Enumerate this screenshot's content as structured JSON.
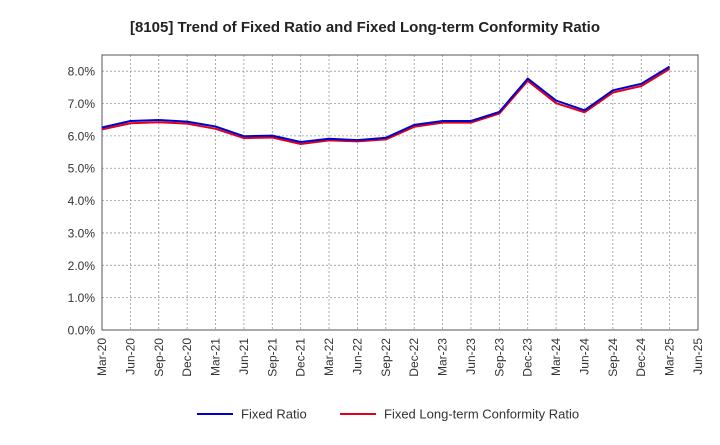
{
  "chart_data": {
    "type": "line",
    "title": "[8105]  Trend of Fixed Ratio and Fixed Long-term Conformity Ratio",
    "xlabel": "",
    "ylabel": "",
    "x": [
      "Mar-20",
      "Jun-20",
      "Sep-20",
      "Dec-20",
      "Mar-21",
      "Jun-21",
      "Sep-21",
      "Dec-21",
      "Mar-22",
      "Jun-22",
      "Sep-22",
      "Dec-22",
      "Mar-23",
      "Jun-23",
      "Sep-23",
      "Dec-23",
      "Mar-24",
      "Jun-24",
      "Sep-24",
      "Dec-24",
      "Mar-25",
      "Jun-25"
    ],
    "ylim": [
      0,
      8.5
    ],
    "yticks": [
      "0.0%",
      "1.0%",
      "2.0%",
      "3.0%",
      "4.0%",
      "5.0%",
      "6.0%",
      "7.0%",
      "8.0%"
    ],
    "grid": true,
    "legend_position": "bottom",
    "series": [
      {
        "name": "Fixed Ratio",
        "color": "#0000cc",
        "values": [
          6.26,
          6.46,
          6.49,
          6.44,
          6.29,
          5.99,
          6.01,
          5.81,
          5.91,
          5.87,
          5.94,
          6.34,
          6.46,
          6.46,
          6.74,
          7.77,
          7.09,
          6.79,
          7.41,
          7.61,
          8.14,
          null
        ]
      },
      {
        "name": "Fixed Long-term Conformity Ratio",
        "color": "#e0001b",
        "values": [
          6.2,
          6.39,
          6.42,
          6.38,
          6.22,
          5.93,
          5.95,
          5.75,
          5.86,
          5.83,
          5.89,
          6.28,
          6.41,
          6.41,
          6.69,
          7.7,
          7.01,
          6.73,
          7.34,
          7.54,
          8.07,
          null
        ]
      }
    ]
  }
}
